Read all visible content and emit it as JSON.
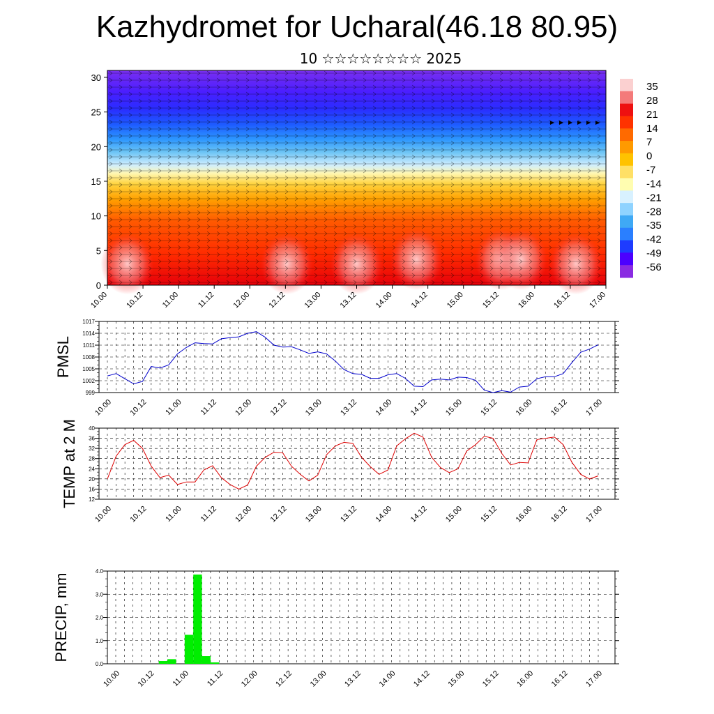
{
  "title": "Kazhydromet for Ucharal(46.18 80.95)",
  "subtitle": "10 ☆☆☆☆☆☆☆☆ 2025",
  "time_labels": [
    "10.00",
    "10.12",
    "11.00",
    "11.12",
    "12.00",
    "12.12",
    "13.00",
    "13.12",
    "14.00",
    "14.12",
    "15.00",
    "15.12",
    "16.00",
    "16.12",
    "17.00"
  ],
  "colors": {
    "pmsl_line": "#0000cc",
    "temp_line": "#dd0000",
    "precip_bar": "#00ee00",
    "colorbar": [
      "#8a2be2",
      "#4b00ff",
      "#1e3cff",
      "#2a7fff",
      "#3fa9f5",
      "#8fd3ff",
      "#d8f1ff",
      "#fffdb0",
      "#ffe066",
      "#ffc200",
      "#ff9a00",
      "#ff6a00",
      "#ff3300",
      "#ee1010",
      "#f47a7a",
      "#fbd0d0"
    ]
  },
  "chart_data": [
    {
      "type": "heatmap",
      "name": "temperature_wind_profile",
      "x_labels": [
        "10.00",
        "10.12",
        "11.00",
        "11.12",
        "12.00",
        "12.12",
        "13.00",
        "13.12",
        "14.00",
        "14.12",
        "15.00",
        "15.12",
        "16.00",
        "16.12",
        "17.00"
      ],
      "y_ticks": [
        0,
        5,
        10,
        15,
        20,
        25,
        30
      ],
      "ylim": [
        0,
        31
      ],
      "colorbar_labels": [
        "35",
        "28",
        "21",
        "14",
        "7",
        "0",
        "-7",
        "-14",
        "-21",
        "-28",
        "-35",
        "-42",
        "-49",
        "-56"
      ]
    },
    {
      "type": "line",
      "name": "pmsl",
      "ylabel": "PMSL",
      "ylim": [
        999,
        1017
      ],
      "y_ticks": [
        999,
        1002,
        1005,
        1008,
        1011,
        1014,
        1017
      ],
      "x_labels": [
        "10.00",
        "10.12",
        "11.00",
        "11.12",
        "12.00",
        "12.12",
        "13.00",
        "13.12",
        "14.00",
        "14.12",
        "15.00",
        "15.12",
        "16.00",
        "16.12",
        "17.00"
      ],
      "x_step_hours": 3,
      "values": [
        1003.2,
        1003.8,
        1002.5,
        1001.2,
        1001.8,
        1005.6,
        1005.2,
        1006.0,
        1008.8,
        1010.4,
        1011.6,
        1011.4,
        1011.3,
        1012.6,
        1012.9,
        1013.1,
        1014.0,
        1014.4,
        1013.0,
        1011.0,
        1010.5,
        1010.6,
        1009.8,
        1008.9,
        1009.3,
        1008.8,
        1007.0,
        1004.8,
        1003.8,
        1003.6,
        1002.6,
        1002.6,
        1003.5,
        1003.8,
        1002.6,
        1000.6,
        1000.5,
        1002.2,
        1002.4,
        1002.2,
        1002.9,
        1002.8,
        1002.1,
        999.6,
        999.0,
        999.5,
        999.1,
        1000.4,
        1000.6,
        1002.5,
        1003.0,
        1003.0,
        1003.8,
        1006.6,
        1009.2,
        1010.0,
        1011.1
      ]
    },
    {
      "type": "line",
      "name": "temp_2m",
      "ylabel": "TEMP at 2 M",
      "ylim": [
        12,
        40
      ],
      "y_ticks": [
        12,
        16,
        20,
        24,
        28,
        32,
        36,
        40
      ],
      "x_labels": [
        "10.00",
        "10.12",
        "11.00",
        "11.12",
        "12.00",
        "12.12",
        "13.00",
        "13.12",
        "14.00",
        "14.12",
        "15.00",
        "15.12",
        "16.00",
        "16.12",
        "17.00"
      ],
      "x_step_hours": 3,
      "values": [
        20.0,
        29.0,
        33.5,
        35.2,
        32.0,
        25.0,
        20.5,
        21.5,
        17.8,
        18.8,
        18.8,
        23.5,
        25.2,
        20.5,
        17.8,
        16.0,
        17.6,
        25.0,
        28.5,
        30.5,
        30.3,
        25.0,
        21.8,
        19.2,
        21.5,
        29.5,
        33.0,
        34.4,
        34.0,
        28.5,
        24.8,
        21.8,
        23.5,
        33.0,
        35.8,
        38.0,
        36.5,
        28.5,
        24.5,
        22.5,
        24.0,
        31.0,
        33.5,
        36.8,
        36.0,
        30.0,
        25.5,
        26.5,
        26.3,
        35.5,
        36.0,
        36.5,
        33.5,
        26.5,
        21.8,
        20.0,
        21.2
      ]
    },
    {
      "type": "bar",
      "name": "precip",
      "ylabel": "PRECIP, mm",
      "ylim": [
        0,
        4
      ],
      "y_ticks": [
        "0.0",
        "1.0",
        "2.0",
        "3.0",
        "4.0"
      ],
      "x_labels": [
        "10.00",
        "10.12",
        "11.00",
        "11.12",
        "12.00",
        "12.12",
        "13.00",
        "13.12",
        "14.00",
        "14.12",
        "15.00",
        "15.12",
        "16.00",
        "16.12",
        "17.00"
      ],
      "bars": [
        {
          "start_hour": 15,
          "end_hour": 18,
          "value": 0.12
        },
        {
          "start_hour": 18,
          "end_hour": 21,
          "value": 0.2
        },
        {
          "start_hour": 24,
          "end_hour": 27,
          "value": 1.25
        },
        {
          "start_hour": 27,
          "end_hour": 30,
          "value": 3.85
        },
        {
          "start_hour": 30,
          "end_hour": 33,
          "value": 0.33
        },
        {
          "start_hour": 33,
          "end_hour": 36,
          "value": 0.06
        }
      ]
    }
  ]
}
